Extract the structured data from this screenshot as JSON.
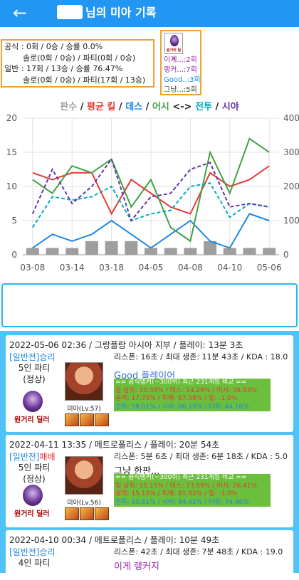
{
  "header": {
    "back_icon": "←",
    "title": "님의 미아 기록",
    "bg": "#2196f3"
  },
  "summary": {
    "official": "공식 : 0회 / 0승 / 승률 0.0%",
    "official_sub": "솔로(0회 / 0승) / 파티(0회 / 0승)",
    "normal": "일반 : 17회 / 13승 / 승률 76.47%",
    "normal_sub": "솔로(0회 / 0승) / 파티(17회 / 13승)"
  },
  "positions": {
    "icon_label": "원거리 딜러",
    "items": [
      {
        "text": "이게...:2회",
        "color": "#9c27b0"
      },
      {
        "text": "랭커...:7회",
        "color": "#9c27b0"
      },
      {
        "text": "Good..:3회",
        "color": "#1e88e5"
      },
      {
        "text": "그냥...:5회",
        "color": "#444444"
      }
    ]
  },
  "legend": [
    {
      "text": "판수",
      "color": "#9e9e9e"
    },
    {
      "text": " / ",
      "color": "#222222"
    },
    {
      "text": "평균 킬",
      "color": "#e53935"
    },
    {
      "text": " / ",
      "color": "#222222"
    },
    {
      "text": "데스",
      "color": "#1e88e5"
    },
    {
      "text": " / ",
      "color": "#222222"
    },
    {
      "text": "어시",
      "color": "#43a047"
    },
    {
      "text": " <-> ",
      "color": "#222222"
    },
    {
      "text": "전투",
      "color": "#00acc1"
    },
    {
      "text": " / ",
      "color": "#222222"
    },
    {
      "text": "시야",
      "color": "#5e35b1"
    }
  ],
  "chart_data": {
    "type": "line",
    "categories": [
      "03-08",
      "",
      "03-14",
      "",
      "03-18",
      "",
      "04-05",
      "",
      "04-08",
      "",
      "04-10",
      "",
      "05-06"
    ],
    "x_tick_labels": [
      "03-08",
      "03-14",
      "03-18",
      "04-05",
      "04-08",
      "04-10",
      "05-06"
    ],
    "y_left": {
      "min": 0,
      "max": 20,
      "ticks": [
        "0",
        "5",
        "10",
        "15",
        "20"
      ]
    },
    "y_right": {
      "min": 0,
      "max": 400,
      "ticks": [
        "0",
        "100",
        "200",
        "300",
        "400"
      ]
    },
    "grid": true,
    "series": [
      {
        "name": "판수",
        "type": "bar",
        "axis": "left",
        "color": "#9e9e9e",
        "values": [
          1,
          1,
          1,
          2,
          2,
          2,
          1,
          1,
          1,
          2,
          1,
          1,
          1
        ]
      },
      {
        "name": "평균 킬",
        "type": "line",
        "axis": "left",
        "color": "#e53935",
        "values": [
          12,
          11,
          12,
          12,
          6,
          11,
          9,
          7,
          6,
          12,
          10,
          11,
          13
        ]
      },
      {
        "name": "데스",
        "type": "line",
        "axis": "left",
        "color": "#1e88e5",
        "values": [
          1,
          3,
          2,
          3,
          5,
          3,
          1,
          3,
          5,
          2,
          1,
          6,
          5
        ]
      },
      {
        "name": "어시",
        "type": "line",
        "axis": "left",
        "color": "#43a047",
        "values": [
          11,
          9,
          13,
          12,
          14,
          7,
          11,
          4,
          2,
          15,
          9,
          17,
          15
        ]
      },
      {
        "name": "전투",
        "type": "dashed",
        "axis": "right",
        "color": "#00acc1",
        "values": [
          80,
          170,
          160,
          170,
          200,
          100,
          120,
          130,
          200,
          210,
          110,
          150,
          140
        ]
      },
      {
        "name": "시야",
        "type": "dashed",
        "axis": "right",
        "color": "#5e35b1",
        "values": [
          120,
          250,
          150,
          200,
          280,
          100,
          170,
          180,
          250,
          270,
          140,
          150,
          140
        ]
      }
    ]
  },
  "games": [
    {
      "head": "2022-05-06 02:36 / 그랑플람 아시아 지부 / 플레이: 13분 3초",
      "mode": "[일반전]",
      "result": "승리",
      "result_color": "#1e88e5",
      "party": "5인 파티",
      "status": "(정상)",
      "pos_label": "원거리 딜러",
      "champ": "미아(Lv.57)",
      "kda": "리스폰: 16초 / 최대 생존: 11분 43초 / KDA : 18.0",
      "tag": "Good 플레이어",
      "tag_color": "#3070d0",
      "stats": [
        "== 공식랭커(~300위) 최근 231게임 비교 ==",
        "킬 상위: 10.39% / 데스: 14.29% / 어시: 39.83%",
        "공격: 17.75% / 피해: 67.58% / 힐: -1.0%",
        "전투: 58.01% / 시야: 86.15% / 타워: 44.16%"
      ]
    },
    {
      "head": "2022-04-11 13:35 / 메트로폴리스 / 플레이: 20분 54초",
      "mode": "[일반전]",
      "result": "패배",
      "result_color": "#e53935",
      "party": "5인 파티",
      "status": "(정상)",
      "pos_label": "원거리 딜러",
      "champ": "미아(Lv.56)",
      "kda": "리스폰: 5분 6초 / 최대 생존: 6분 18초 / KDA : 5.0",
      "tag": "그냥 한판...",
      "tag_color": "#222222",
      "stats": [
        "== 공식랭커(~300위) 최근 231게임 비교 ==",
        "킬 상위: 15.15% / 데스: 73.59% / 어시: 26.41%",
        "공격: 15.15% / 피해: 81.82% / 힐: -1.0%",
        "전투: 60.61% / 시야: 84.42% / 타워: 74.46%"
      ]
    },
    {
      "head": "2022-04-10 00:34 / 메트로폴리스 / 플레이: 10분 49초",
      "mode": "[일반전]",
      "result": "승리",
      "result_color": "#1e88e5",
      "party": "4인 파티",
      "kda": "리스폰: 42초 / 최대 생존: 7분 48초 / KDA : 19.0",
      "tag": "이게 랭커지",
      "tag_color": "#9c27b0"
    }
  ]
}
